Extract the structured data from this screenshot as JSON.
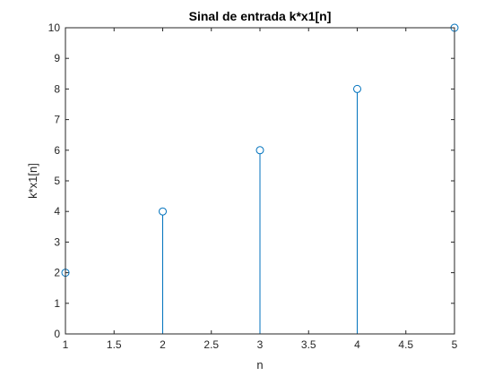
{
  "chart_data": {
    "type": "stem",
    "title": "Sinal de entrada k*x1[n]",
    "xlabel": "n",
    "ylabel": "k*x1[n]",
    "xlim": [
      1,
      5
    ],
    "ylim": [
      0,
      10
    ],
    "xticks": [
      "1",
      "1.5",
      "2",
      "2.5",
      "3",
      "3.5",
      "4",
      "4.5",
      "5"
    ],
    "yticks": [
      "0",
      "1",
      "2",
      "3",
      "4",
      "5",
      "6",
      "7",
      "8",
      "9",
      "10"
    ],
    "x": [
      1,
      2,
      3,
      4,
      5
    ],
    "values": [
      2,
      4,
      6,
      8,
      10
    ],
    "grid": false,
    "legend": false,
    "color": "#0072bd"
  }
}
